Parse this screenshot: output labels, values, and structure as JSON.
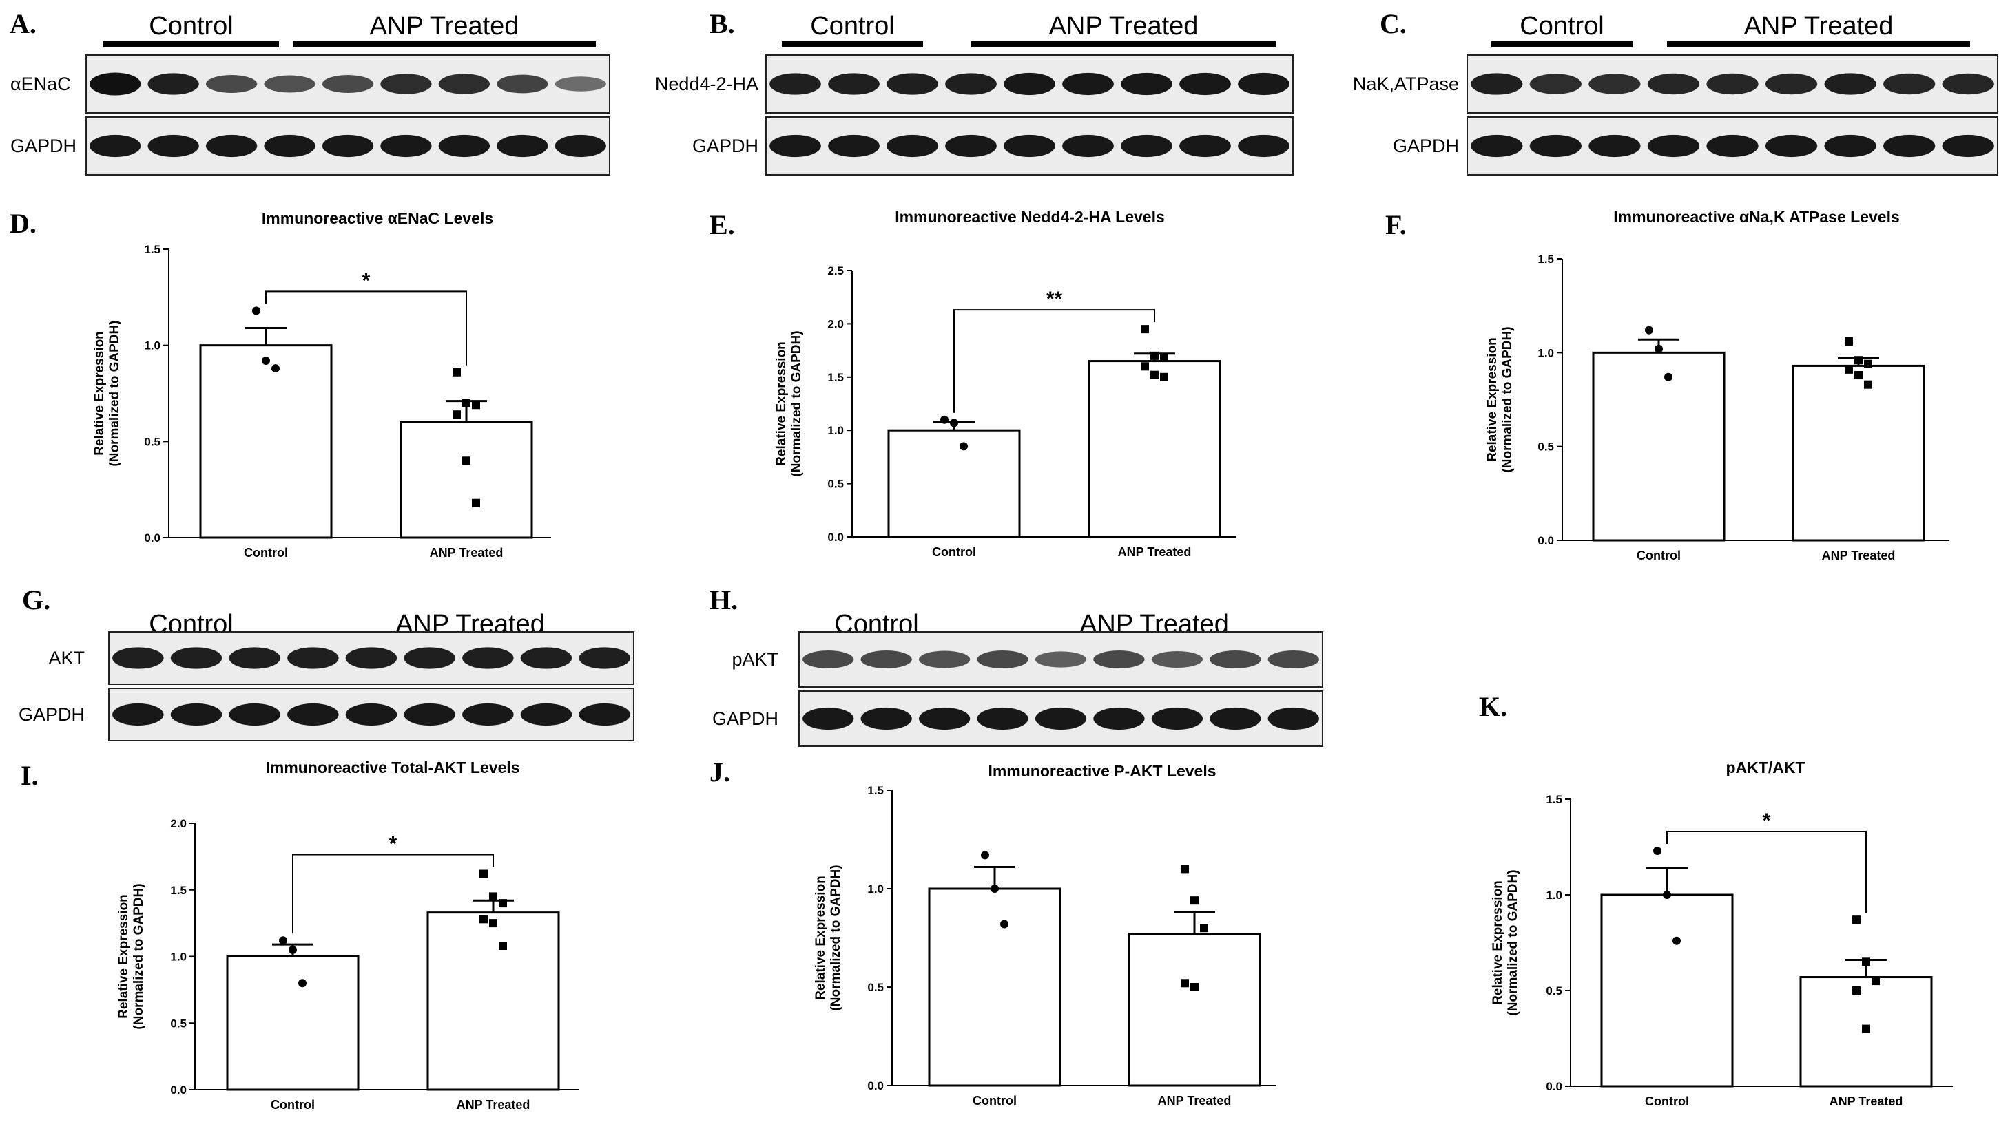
{
  "blots": [
    {
      "letter": "A.",
      "groups": [
        "Control",
        "ANP Treated"
      ],
      "rows": [
        {
          "label": "αENaC",
          "intensities": [
            0.95,
            0.85,
            0.55,
            0.5,
            0.55,
            0.75,
            0.75,
            0.6,
            0.3
          ]
        },
        {
          "label": "GAPDH",
          "intensities": [
            0.9,
            0.9,
            0.9,
            0.9,
            0.9,
            0.9,
            0.9,
            0.9,
            0.9
          ]
        }
      ]
    },
    {
      "letter": "B.",
      "groups": [
        "Control",
        "ANP Treated"
      ],
      "rows": [
        {
          "label": "Nedd4-2-HA",
          "intensities": [
            0.85,
            0.85,
            0.85,
            0.85,
            0.9,
            0.9,
            0.9,
            0.9,
            0.9
          ]
        },
        {
          "label": "GAPDH",
          "intensities": [
            0.9,
            0.9,
            0.9,
            0.9,
            0.9,
            0.9,
            0.9,
            0.9,
            0.9
          ]
        }
      ]
    },
    {
      "letter": "C.",
      "groups": [
        "Control",
        "ANP Treated"
      ],
      "rows": [
        {
          "label": "NaK,ATPase",
          "intensities": [
            0.85,
            0.75,
            0.75,
            0.8,
            0.8,
            0.8,
            0.85,
            0.8,
            0.8
          ]
        },
        {
          "label": "GAPDH",
          "intensities": [
            0.9,
            0.9,
            0.9,
            0.9,
            0.9,
            0.9,
            0.9,
            0.9,
            0.9
          ]
        }
      ]
    },
    {
      "letter": "G.",
      "groups": [
        "Control",
        "ANP Treated"
      ],
      "rows": [
        {
          "label": "AKT",
          "intensities": [
            0.85,
            0.85,
            0.85,
            0.85,
            0.85,
            0.85,
            0.85,
            0.85,
            0.85
          ]
        },
        {
          "label": "GAPDH",
          "intensities": [
            0.9,
            0.9,
            0.9,
            0.9,
            0.9,
            0.9,
            0.9,
            0.9,
            0.9
          ]
        }
      ]
    },
    {
      "letter": "H.",
      "groups": [
        "Control",
        "ANP Treated"
      ],
      "rows": [
        {
          "label": "pAKT",
          "intensities": [
            0.55,
            0.55,
            0.5,
            0.55,
            0.4,
            0.55,
            0.45,
            0.55,
            0.55
          ]
        },
        {
          "label": "GAPDH",
          "intensities": [
            0.9,
            0.9,
            0.9,
            0.9,
            0.9,
            0.9,
            0.9,
            0.9,
            0.9
          ]
        }
      ]
    }
  ],
  "chart_data": [
    {
      "letter": "D.",
      "type": "bar",
      "title": "Immunoreactive αENaC Levels",
      "ylabel": [
        "Relative Expression",
        "(Normalized to GAPDH)"
      ],
      "ylim": [
        0,
        1.5
      ],
      "yticks": [
        "0.0",
        "0.5",
        "1.0",
        "1.5"
      ],
      "categories": [
        "Control",
        "ANP Treated"
      ],
      "values": [
        1.0,
        0.6
      ],
      "sem": [
        0.09,
        0.11
      ],
      "points": [
        [
          1.18,
          0.92,
          0.88
        ],
        [
          0.86,
          0.7,
          0.69,
          0.64,
          0.4,
          0.18
        ]
      ],
      "significance": "*"
    },
    {
      "letter": "E.",
      "type": "bar",
      "title": "Immunoreactive Nedd4-2-HA Levels",
      "ylabel": [
        "Relative Expression",
        "(Normalized to GAPDH)"
      ],
      "ylim": [
        0,
        2.5
      ],
      "yticks": [
        "0.0",
        "0.5",
        "1.0",
        "1.5",
        "2.0",
        "2.5"
      ],
      "categories": [
        "Control",
        "ANP Treated"
      ],
      "values": [
        1.0,
        1.65
      ],
      "sem": [
        0.08,
        0.07
      ],
      "points": [
        [
          1.1,
          1.07,
          0.85
        ],
        [
          1.95,
          1.7,
          1.68,
          1.6,
          1.52,
          1.5
        ]
      ],
      "significance": "**"
    },
    {
      "letter": "F.",
      "type": "bar",
      "title": "Immunoreactive αNa,K ATPase Levels",
      "ylabel": [
        "Relative Expression",
        "(Normalized to GAPDH)"
      ],
      "ylim": [
        0,
        1.5
      ],
      "yticks": [
        "0.0",
        "0.5",
        "1.0",
        "1.5"
      ],
      "categories": [
        "Control",
        "ANP Treated"
      ],
      "values": [
        1.0,
        0.93
      ],
      "sem": [
        0.07,
        0.04
      ],
      "points": [
        [
          1.12,
          1.02,
          0.87
        ],
        [
          1.06,
          0.96,
          0.94,
          0.91,
          0.88,
          0.83
        ]
      ],
      "significance": ""
    },
    {
      "letter": "I.",
      "type": "bar",
      "title": "Immunoreactive Total-AKT Levels",
      "ylabel": [
        "Relative Expression",
        "(Normalized to GAPDH)"
      ],
      "ylim": [
        0,
        2.0
      ],
      "yticks": [
        "0.0",
        "0.5",
        "1.0",
        "1.5",
        "2.0"
      ],
      "categories": [
        "Control",
        "ANP Treated"
      ],
      "values": [
        1.0,
        1.33
      ],
      "sem": [
        0.09,
        0.09
      ],
      "points": [
        [
          1.12,
          1.05,
          0.8
        ],
        [
          1.62,
          1.45,
          1.4,
          1.28,
          1.25,
          1.08
        ]
      ],
      "significance": "*"
    },
    {
      "letter": "J.",
      "type": "bar",
      "title": "Immunoreactive P-AKT Levels",
      "ylabel": [
        "Relative Expression",
        "(Normalized to GAPDH)"
      ],
      "ylim": [
        0,
        1.5
      ],
      "yticks": [
        "0.0",
        "0.5",
        "1.0",
        "1.5"
      ],
      "categories": [
        "Control",
        "ANP Treated"
      ],
      "values": [
        1.0,
        0.77
      ],
      "sem": [
        0.11,
        0.11
      ],
      "points": [
        [
          1.17,
          1.0,
          0.82
        ],
        [
          1.1,
          0.94,
          0.8,
          0.52,
          0.5
        ]
      ],
      "significance": ""
    },
    {
      "letter": "K.",
      "type": "bar",
      "title": "pAKT/AKT",
      "ylabel": [
        "Relative Expression",
        "(Normalized to GAPDH)"
      ],
      "ylim": [
        0,
        1.5
      ],
      "yticks": [
        "0.0",
        "0.5",
        "1.0",
        "1.5"
      ],
      "categories": [
        "Control",
        "ANP Treated"
      ],
      "values": [
        1.0,
        0.57
      ],
      "sem": [
        0.14,
        0.09
      ],
      "points": [
        [
          1.23,
          1.0,
          0.76
        ],
        [
          0.87,
          0.65,
          0.55,
          0.5,
          0.3
        ]
      ],
      "significance": "*"
    }
  ]
}
